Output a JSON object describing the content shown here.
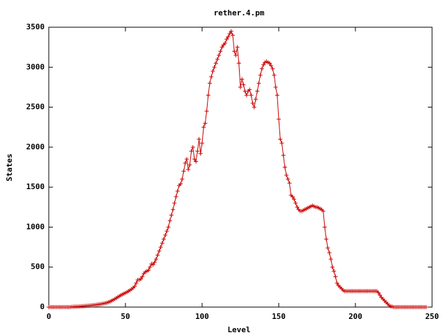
{
  "chart_data": {
    "type": "line",
    "title": "rether.4.pm",
    "x_label": "Level",
    "y_label": "States",
    "x": [
      0,
      1,
      2,
      3,
      4,
      5,
      6,
      7,
      8,
      9,
      10,
      11,
      12,
      13,
      14,
      15,
      16,
      17,
      18,
      19,
      20,
      21,
      22,
      23,
      24,
      25,
      26,
      27,
      28,
      29,
      30,
      31,
      32,
      33,
      34,
      35,
      36,
      37,
      38,
      39,
      40,
      41,
      42,
      43,
      44,
      45,
      46,
      47,
      48,
      49,
      50,
      51,
      52,
      53,
      54,
      55,
      56,
      57,
      58,
      59,
      60,
      61,
      62,
      63,
      64,
      65,
      66,
      67,
      68,
      69,
      70,
      71,
      72,
      73,
      74,
      75,
      76,
      77,
      78,
      79,
      80,
      81,
      82,
      83,
      84,
      85,
      86,
      87,
      88,
      89,
      90,
      91,
      92,
      93,
      94,
      95,
      96,
      97,
      98,
      99,
      100,
      101,
      102,
      103,
      104,
      105,
      106,
      107,
      108,
      109,
      110,
      111,
      112,
      113,
      114,
      115,
      116,
      117,
      118,
      119,
      120,
      121,
      122,
      123,
      124,
      125,
      126,
      127,
      128,
      129,
      130,
      131,
      132,
      133,
      134,
      135,
      136,
      137,
      138,
      139,
      140,
      141,
      142,
      143,
      144,
      145,
      146,
      147,
      148,
      149,
      150,
      151,
      152,
      153,
      154,
      155,
      156,
      157,
      158,
      159,
      160,
      161,
      162,
      163,
      164,
      165,
      166,
      167,
      168,
      169,
      170,
      171,
      172,
      173,
      174,
      175,
      176,
      177,
      178,
      179,
      180,
      181,
      182,
      183,
      184,
      185,
      186,
      187,
      188,
      189,
      190,
      191,
      192,
      193,
      194,
      195,
      196,
      197,
      198,
      199,
      200,
      201,
      202,
      203,
      204,
      205,
      206,
      207,
      208,
      209,
      210,
      211,
      212,
      213,
      214,
      215,
      216,
      217,
      218,
      219,
      220,
      221,
      222,
      223,
      224,
      225,
      226,
      227,
      228,
      229,
      230,
      231,
      232,
      233,
      234,
      235,
      236,
      237,
      238,
      239,
      240,
      241,
      242,
      243,
      244,
      245,
      246
    ],
    "series": [
      {
        "color": "#cc0000",
        "values": [
          0,
          0,
          0,
          0,
          0,
          0,
          0,
          0,
          0,
          0,
          0,
          0,
          0,
          0,
          0,
          3,
          4,
          5,
          6,
          7,
          8,
          10,
          11,
          12,
          14,
          16,
          18,
          20,
          22,
          24,
          26,
          29,
          32,
          35,
          38,
          42,
          46,
          50,
          55,
          62,
          70,
          80,
          90,
          100,
          112,
          124,
          136,
          148,
          158,
          168,
          178,
          188,
          200,
          212,
          224,
          240,
          260,
          300,
          340,
          340,
          350,
          380,
          420,
          440,
          450,
          460,
          500,
          540,
          530,
          560,
          600,
          650,
          700,
          750,
          800,
          850,
          900,
          950,
          1000,
          1080,
          1150,
          1220,
          1300,
          1380,
          1450,
          1520,
          1540,
          1600,
          1700,
          1800,
          1850,
          1720,
          1780,
          1950,
          2000,
          1850,
          1820,
          1950,
          2100,
          1920,
          2050,
          2250,
          2300,
          2450,
          2650,
          2800,
          2880,
          2950,
          3000,
          3050,
          3100,
          3150,
          3200,
          3250,
          3280,
          3300,
          3350,
          3380,
          3420,
          3450,
          3400,
          3200,
          3150,
          3250,
          3050,
          2750,
          2850,
          2780,
          2700,
          2650,
          2700,
          2720,
          2650,
          2550,
          2500,
          2600,
          2700,
          2800,
          2900,
          2980,
          3030,
          3060,
          3070,
          3060,
          3050,
          3020,
          2980,
          2900,
          2750,
          2650,
          2350,
          2100,
          2050,
          1900,
          1750,
          1650,
          1600,
          1550,
          1400,
          1380,
          1350,
          1300,
          1250,
          1220,
          1200,
          1200,
          1210,
          1220,
          1230,
          1240,
          1250,
          1260,
          1270,
          1260,
          1250,
          1250,
          1240,
          1230,
          1220,
          1200,
          1000,
          850,
          740,
          680,
          600,
          500,
          450,
          380,
          300,
          270,
          250,
          230,
          210,
          200,
          200,
          200,
          200,
          200,
          200,
          200,
          200,
          200,
          200,
          200,
          200,
          200,
          200,
          200,
          200,
          200,
          200,
          200,
          200,
          200,
          200,
          180,
          150,
          120,
          100,
          80,
          60,
          40,
          20,
          10,
          5,
          0,
          0,
          0,
          0,
          0,
          0,
          0,
          0,
          0,
          0,
          0,
          0,
          0,
          0,
          0,
          0,
          0,
          0,
          0,
          0,
          0,
          0
        ]
      }
    ],
    "xlim": [
      0,
      250
    ],
    "xticks": [
      0,
      50,
      100,
      150,
      200,
      250
    ],
    "ylim": [
      0,
      3500
    ],
    "yticks": [
      0,
      500,
      1000,
      1500,
      2000,
      2500,
      3000,
      3500
    ]
  }
}
